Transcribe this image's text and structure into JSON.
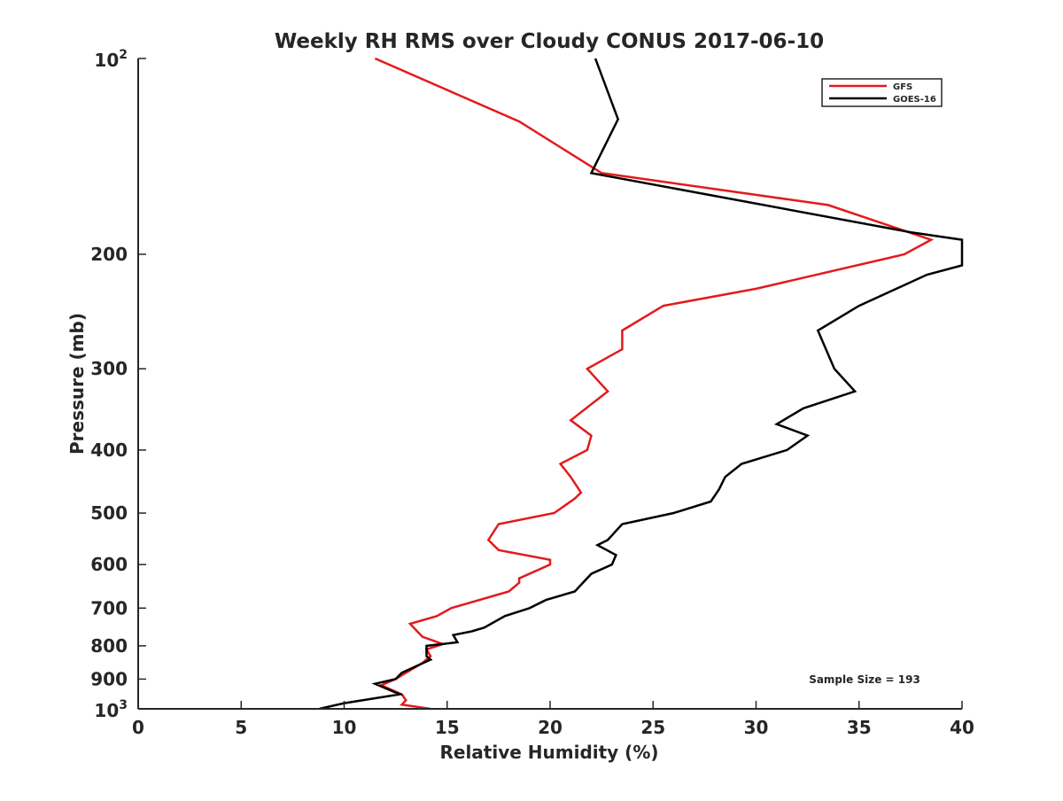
{
  "chart_data": {
    "type": "line",
    "title": "Weekly RH RMS over Cloudy CONUS 2017-06-10",
    "xlabel": "Relative Humidity (%)",
    "ylabel": "Pressure (mb)",
    "xlim": [
      0,
      40
    ],
    "ylim": [
      100,
      1000
    ],
    "y_scale": "log",
    "y_reversed": true,
    "grid": false,
    "legend_position": "top-right",
    "x_ticks": [
      0,
      5,
      10,
      15,
      20,
      25,
      30,
      35,
      40
    ],
    "x_tick_labels": [
      "0",
      "5",
      "10",
      "15",
      "20",
      "25",
      "30",
      "35",
      "40"
    ],
    "y_ticks": [
      200,
      300,
      400,
      500,
      600,
      700,
      800,
      900
    ],
    "y_tick_labels": [
      "200",
      "300",
      "400",
      "500",
      "600",
      "700",
      "800",
      "900"
    ],
    "y_ticks_exp": [
      {
        "value": 100,
        "base": "10",
        "exp": "2"
      },
      {
        "value": 1000,
        "base": "10",
        "exp": "3"
      }
    ],
    "annotation": "Sample Size = 193",
    "series": [
      {
        "name": "GFS",
        "color": "#e31a1c",
        "points": [
          [
            11.5,
            100
          ],
          [
            18.5,
            125
          ],
          [
            22.5,
            150
          ],
          [
            33.5,
            168
          ],
          [
            38.5,
            190
          ],
          [
            37.2,
            200
          ],
          [
            30.0,
            226
          ],
          [
            25.5,
            240
          ],
          [
            23.5,
            262
          ],
          [
            23.5,
            280
          ],
          [
            21.8,
            300
          ],
          [
            22.8,
            325
          ],
          [
            21.0,
            360
          ],
          [
            22.0,
            380
          ],
          [
            21.8,
            400
          ],
          [
            20.5,
            420
          ],
          [
            21.0,
            440
          ],
          [
            21.5,
            465
          ],
          [
            21.2,
            475
          ],
          [
            20.2,
            500
          ],
          [
            17.5,
            520
          ],
          [
            17.0,
            550
          ],
          [
            17.5,
            570
          ],
          [
            20.0,
            590
          ],
          [
            20.0,
            600
          ],
          [
            18.5,
            630
          ],
          [
            18.5,
            640
          ],
          [
            18.0,
            660
          ],
          [
            15.2,
            700
          ],
          [
            14.5,
            720
          ],
          [
            13.2,
            740
          ],
          [
            13.8,
            775
          ],
          [
            14.8,
            795
          ],
          [
            14.0,
            810
          ],
          [
            14.2,
            830
          ],
          [
            14.0,
            840
          ],
          [
            13.8,
            850
          ],
          [
            13.0,
            880
          ],
          [
            12.5,
            900
          ],
          [
            11.8,
            920
          ],
          [
            12.8,
            950
          ],
          [
            13.0,
            970
          ],
          [
            12.8,
            985
          ],
          [
            14.2,
            1000
          ]
        ]
      },
      {
        "name": "GOES-16",
        "color": "#000000",
        "points": [
          [
            22.2,
            100
          ],
          [
            23.3,
            124
          ],
          [
            22.0,
            150
          ],
          [
            37.5,
            185
          ],
          [
            40.0,
            190
          ],
          [
            40.0,
            208
          ],
          [
            38.3,
            215
          ],
          [
            35.0,
            240
          ],
          [
            33.0,
            262
          ],
          [
            33.8,
            300
          ],
          [
            34.8,
            325
          ],
          [
            32.3,
            345
          ],
          [
            31.0,
            365
          ],
          [
            32.5,
            380
          ],
          [
            31.5,
            400
          ],
          [
            29.3,
            420
          ],
          [
            28.5,
            440
          ],
          [
            28.2,
            460
          ],
          [
            27.8,
            480
          ],
          [
            26.0,
            500
          ],
          [
            23.5,
            520
          ],
          [
            22.8,
            550
          ],
          [
            22.3,
            560
          ],
          [
            23.2,
            580
          ],
          [
            23.0,
            600
          ],
          [
            22.0,
            620
          ],
          [
            21.2,
            660
          ],
          [
            19.8,
            680
          ],
          [
            19.0,
            700
          ],
          [
            17.8,
            720
          ],
          [
            16.8,
            750
          ],
          [
            16.2,
            760
          ],
          [
            15.3,
            770
          ],
          [
            15.5,
            790
          ],
          [
            14.0,
            800
          ],
          [
            14.0,
            830
          ],
          [
            14.2,
            840
          ],
          [
            12.8,
            880
          ],
          [
            12.5,
            900
          ],
          [
            11.5,
            915
          ],
          [
            12.7,
            950
          ],
          [
            10.0,
            980
          ],
          [
            8.8,
            1000
          ]
        ]
      }
    ]
  }
}
